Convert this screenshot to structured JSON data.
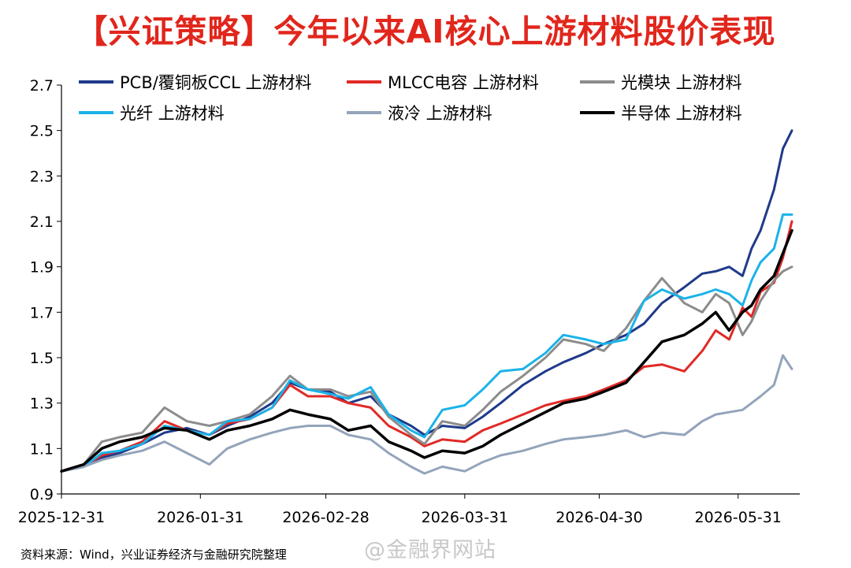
{
  "chart_data": {
    "type": "line",
    "title": "【兴证策略】今年以来AI核心上游材料股价表现",
    "xlabel": "",
    "ylabel": "",
    "x_start": "2025-12-31",
    "x_end": "2026-06-12",
    "x_ticks": [
      "2025-12-31",
      "2026-01-31",
      "2026-02-28",
      "2026-03-31",
      "2026-04-30",
      "2026-05-31"
    ],
    "y_ticks": [
      0.9,
      1.1,
      1.3,
      1.5,
      1.7,
      1.9,
      2.1,
      2.3,
      2.5,
      2.7
    ],
    "ylim": [
      0.9,
      2.7
    ],
    "legend_position": "top",
    "grid": false,
    "series": [
      {
        "name": "PCB/覆铜板CCL 上游材料",
        "color": "#1f3a8a",
        "width": 3,
        "points": [
          [
            "2025-12-31",
            1.0
          ],
          [
            "2026-01-05",
            1.02
          ],
          [
            "2026-01-09",
            1.06
          ],
          [
            "2026-01-13",
            1.08
          ],
          [
            "2026-01-18",
            1.12
          ],
          [
            "2026-01-23",
            1.17
          ],
          [
            "2026-01-28",
            1.19
          ],
          [
            "2026-02-02",
            1.16
          ],
          [
            "2026-02-06",
            1.2
          ],
          [
            "2026-02-11",
            1.24
          ],
          [
            "2026-02-16",
            1.3
          ],
          [
            "2026-02-20",
            1.39
          ],
          [
            "2026-02-24",
            1.36
          ],
          [
            "2026-03-01",
            1.35
          ],
          [
            "2026-03-05",
            1.3
          ],
          [
            "2026-03-10",
            1.33
          ],
          [
            "2026-03-14",
            1.25
          ],
          [
            "2026-03-19",
            1.2
          ],
          [
            "2026-03-22",
            1.16
          ],
          [
            "2026-03-26",
            1.2
          ],
          [
            "2026-03-31",
            1.19
          ],
          [
            "2026-04-04",
            1.24
          ],
          [
            "2026-04-08",
            1.3
          ],
          [
            "2026-04-13",
            1.38
          ],
          [
            "2026-04-18",
            1.44
          ],
          [
            "2026-04-22",
            1.48
          ],
          [
            "2026-04-27",
            1.52
          ],
          [
            "2026-05-01",
            1.56
          ],
          [
            "2026-05-06",
            1.6
          ],
          [
            "2026-05-10",
            1.65
          ],
          [
            "2026-05-14",
            1.74
          ],
          [
            "2026-05-19",
            1.81
          ],
          [
            "2026-05-23",
            1.87
          ],
          [
            "2026-05-26",
            1.88
          ],
          [
            "2026-05-29",
            1.9
          ],
          [
            "2026-06-01",
            1.86
          ],
          [
            "2026-06-03",
            1.98
          ],
          [
            "2026-06-05",
            2.06
          ],
          [
            "2026-06-08",
            2.24
          ],
          [
            "2026-06-10",
            2.42
          ],
          [
            "2026-06-12",
            2.5
          ]
        ]
      },
      {
        "name": "MLCC电容  上游材料",
        "color": "#e02a26",
        "width": 3,
        "points": [
          [
            "2025-12-31",
            1.0
          ],
          [
            "2026-01-05",
            1.02
          ],
          [
            "2026-01-09",
            1.07
          ],
          [
            "2026-01-13",
            1.09
          ],
          [
            "2026-01-18",
            1.13
          ],
          [
            "2026-01-23",
            1.22
          ],
          [
            "2026-01-28",
            1.18
          ],
          [
            "2026-02-02",
            1.16
          ],
          [
            "2026-02-06",
            1.21
          ],
          [
            "2026-02-11",
            1.23
          ],
          [
            "2026-02-16",
            1.28
          ],
          [
            "2026-02-20",
            1.38
          ],
          [
            "2026-02-24",
            1.33
          ],
          [
            "2026-03-01",
            1.33
          ],
          [
            "2026-03-05",
            1.3
          ],
          [
            "2026-03-10",
            1.28
          ],
          [
            "2026-03-14",
            1.2
          ],
          [
            "2026-03-19",
            1.15
          ],
          [
            "2026-03-22",
            1.11
          ],
          [
            "2026-03-26",
            1.14
          ],
          [
            "2026-03-31",
            1.13
          ],
          [
            "2026-04-04",
            1.18
          ],
          [
            "2026-04-08",
            1.21
          ],
          [
            "2026-04-13",
            1.25
          ],
          [
            "2026-04-18",
            1.29
          ],
          [
            "2026-04-22",
            1.31
          ],
          [
            "2026-04-27",
            1.33
          ],
          [
            "2026-05-01",
            1.36
          ],
          [
            "2026-05-06",
            1.4
          ],
          [
            "2026-05-10",
            1.46
          ],
          [
            "2026-05-14",
            1.47
          ],
          [
            "2026-05-19",
            1.44
          ],
          [
            "2026-05-23",
            1.53
          ],
          [
            "2026-05-26",
            1.62
          ],
          [
            "2026-05-29",
            1.58
          ],
          [
            "2026-06-01",
            1.72
          ],
          [
            "2026-06-03",
            1.68
          ],
          [
            "2026-06-05",
            1.79
          ],
          [
            "2026-06-08",
            1.83
          ],
          [
            "2026-06-10",
            1.94
          ],
          [
            "2026-06-12",
            2.1
          ]
        ]
      },
      {
        "name": "光模块 上游材料",
        "color": "#8c8c8c",
        "width": 3,
        "points": [
          [
            "2025-12-31",
            1.0
          ],
          [
            "2026-01-05",
            1.03
          ],
          [
            "2026-01-09",
            1.13
          ],
          [
            "2026-01-13",
            1.15
          ],
          [
            "2026-01-18",
            1.17
          ],
          [
            "2026-01-23",
            1.28
          ],
          [
            "2026-01-28",
            1.22
          ],
          [
            "2026-02-02",
            1.2
          ],
          [
            "2026-02-06",
            1.22
          ],
          [
            "2026-02-11",
            1.25
          ],
          [
            "2026-02-16",
            1.33
          ],
          [
            "2026-02-20",
            1.42
          ],
          [
            "2026-02-24",
            1.36
          ],
          [
            "2026-03-01",
            1.36
          ],
          [
            "2026-03-05",
            1.33
          ],
          [
            "2026-03-10",
            1.35
          ],
          [
            "2026-03-14",
            1.24
          ],
          [
            "2026-03-19",
            1.16
          ],
          [
            "2026-03-22",
            1.12
          ],
          [
            "2026-03-26",
            1.22
          ],
          [
            "2026-03-31",
            1.2
          ],
          [
            "2026-04-04",
            1.27
          ],
          [
            "2026-04-08",
            1.35
          ],
          [
            "2026-04-13",
            1.42
          ],
          [
            "2026-04-18",
            1.5
          ],
          [
            "2026-04-22",
            1.58
          ],
          [
            "2026-04-27",
            1.56
          ],
          [
            "2026-05-01",
            1.53
          ],
          [
            "2026-05-06",
            1.63
          ],
          [
            "2026-05-10",
            1.75
          ],
          [
            "2026-05-14",
            1.85
          ],
          [
            "2026-05-19",
            1.74
          ],
          [
            "2026-05-23",
            1.7
          ],
          [
            "2026-05-26",
            1.78
          ],
          [
            "2026-05-29",
            1.74
          ],
          [
            "2026-06-01",
            1.6
          ],
          [
            "2026-06-03",
            1.66
          ],
          [
            "2026-06-05",
            1.75
          ],
          [
            "2026-06-08",
            1.84
          ],
          [
            "2026-06-10",
            1.88
          ],
          [
            "2026-06-12",
            1.9
          ]
        ]
      },
      {
        "name": "光纤 上游材料",
        "color": "#1ab3e8",
        "width": 3,
        "points": [
          [
            "2025-12-31",
            1.0
          ],
          [
            "2026-01-05",
            1.02
          ],
          [
            "2026-01-09",
            1.08
          ],
          [
            "2026-01-13",
            1.09
          ],
          [
            "2026-01-18",
            1.12
          ],
          [
            "2026-01-23",
            1.2
          ],
          [
            "2026-01-28",
            1.18
          ],
          [
            "2026-02-02",
            1.16
          ],
          [
            "2026-02-06",
            1.22
          ],
          [
            "2026-02-11",
            1.23
          ],
          [
            "2026-02-16",
            1.28
          ],
          [
            "2026-02-20",
            1.4
          ],
          [
            "2026-02-24",
            1.36
          ],
          [
            "2026-03-01",
            1.34
          ],
          [
            "2026-03-05",
            1.32
          ],
          [
            "2026-03-10",
            1.37
          ],
          [
            "2026-03-14",
            1.25
          ],
          [
            "2026-03-19",
            1.18
          ],
          [
            "2026-03-22",
            1.15
          ],
          [
            "2026-03-26",
            1.27
          ],
          [
            "2026-03-31",
            1.29
          ],
          [
            "2026-04-04",
            1.36
          ],
          [
            "2026-04-08",
            1.44
          ],
          [
            "2026-04-13",
            1.45
          ],
          [
            "2026-04-18",
            1.52
          ],
          [
            "2026-04-22",
            1.6
          ],
          [
            "2026-04-27",
            1.58
          ],
          [
            "2026-05-01",
            1.56
          ],
          [
            "2026-05-06",
            1.58
          ],
          [
            "2026-05-10",
            1.75
          ],
          [
            "2026-05-14",
            1.8
          ],
          [
            "2026-05-19",
            1.76
          ],
          [
            "2026-05-23",
            1.78
          ],
          [
            "2026-05-26",
            1.8
          ],
          [
            "2026-05-29",
            1.78
          ],
          [
            "2026-06-01",
            1.73
          ],
          [
            "2026-06-03",
            1.84
          ],
          [
            "2026-06-05",
            1.92
          ],
          [
            "2026-06-08",
            1.98
          ],
          [
            "2026-06-10",
            2.13
          ],
          [
            "2026-06-12",
            2.13
          ]
        ]
      },
      {
        "name": "液冷 上游材料",
        "color": "#93a4bb",
        "width": 3,
        "points": [
          [
            "2025-12-31",
            1.0
          ],
          [
            "2026-01-05",
            1.02
          ],
          [
            "2026-01-09",
            1.05
          ],
          [
            "2026-01-13",
            1.07
          ],
          [
            "2026-01-18",
            1.09
          ],
          [
            "2026-01-23",
            1.13
          ],
          [
            "2026-01-28",
            1.08
          ],
          [
            "2026-02-02",
            1.03
          ],
          [
            "2026-02-06",
            1.1
          ],
          [
            "2026-02-11",
            1.14
          ],
          [
            "2026-02-16",
            1.17
          ],
          [
            "2026-02-20",
            1.19
          ],
          [
            "2026-02-24",
            1.2
          ],
          [
            "2026-03-01",
            1.2
          ],
          [
            "2026-03-05",
            1.16
          ],
          [
            "2026-03-10",
            1.14
          ],
          [
            "2026-03-14",
            1.08
          ],
          [
            "2026-03-19",
            1.02
          ],
          [
            "2026-03-22",
            0.99
          ],
          [
            "2026-03-26",
            1.02
          ],
          [
            "2026-03-31",
            1.0
          ],
          [
            "2026-04-04",
            1.04
          ],
          [
            "2026-04-08",
            1.07
          ],
          [
            "2026-04-13",
            1.09
          ],
          [
            "2026-04-18",
            1.12
          ],
          [
            "2026-04-22",
            1.14
          ],
          [
            "2026-04-27",
            1.15
          ],
          [
            "2026-05-01",
            1.16
          ],
          [
            "2026-05-06",
            1.18
          ],
          [
            "2026-05-10",
            1.15
          ],
          [
            "2026-05-14",
            1.17
          ],
          [
            "2026-05-19",
            1.16
          ],
          [
            "2026-05-23",
            1.22
          ],
          [
            "2026-05-26",
            1.25
          ],
          [
            "2026-05-29",
            1.26
          ],
          [
            "2026-06-01",
            1.27
          ],
          [
            "2026-06-03",
            1.3
          ],
          [
            "2026-06-05",
            1.33
          ],
          [
            "2026-06-08",
            1.38
          ],
          [
            "2026-06-10",
            1.51
          ],
          [
            "2026-06-12",
            1.45
          ]
        ]
      },
      {
        "name": "半导体 上游材料",
        "color": "#000000",
        "width": 3.5,
        "points": [
          [
            "2025-12-31",
            1.0
          ],
          [
            "2026-01-05",
            1.03
          ],
          [
            "2026-01-09",
            1.1
          ],
          [
            "2026-01-13",
            1.13
          ],
          [
            "2026-01-18",
            1.15
          ],
          [
            "2026-01-23",
            1.19
          ],
          [
            "2026-01-28",
            1.18
          ],
          [
            "2026-02-02",
            1.14
          ],
          [
            "2026-02-06",
            1.18
          ],
          [
            "2026-02-11",
            1.2
          ],
          [
            "2026-02-16",
            1.23
          ],
          [
            "2026-02-20",
            1.27
          ],
          [
            "2026-02-24",
            1.25
          ],
          [
            "2026-03-01",
            1.23
          ],
          [
            "2026-03-05",
            1.18
          ],
          [
            "2026-03-10",
            1.2
          ],
          [
            "2026-03-14",
            1.13
          ],
          [
            "2026-03-19",
            1.09
          ],
          [
            "2026-03-22",
            1.06
          ],
          [
            "2026-03-26",
            1.09
          ],
          [
            "2026-03-31",
            1.08
          ],
          [
            "2026-04-04",
            1.11
          ],
          [
            "2026-04-08",
            1.16
          ],
          [
            "2026-04-13",
            1.21
          ],
          [
            "2026-04-18",
            1.26
          ],
          [
            "2026-04-22",
            1.3
          ],
          [
            "2026-04-27",
            1.32
          ],
          [
            "2026-05-01",
            1.35
          ],
          [
            "2026-05-06",
            1.39
          ],
          [
            "2026-05-10",
            1.48
          ],
          [
            "2026-05-14",
            1.57
          ],
          [
            "2026-05-19",
            1.6
          ],
          [
            "2026-05-23",
            1.65
          ],
          [
            "2026-05-26",
            1.7
          ],
          [
            "2026-05-29",
            1.62
          ],
          [
            "2026-06-01",
            1.7
          ],
          [
            "2026-06-03",
            1.73
          ],
          [
            "2026-06-05",
            1.8
          ],
          [
            "2026-06-08",
            1.86
          ],
          [
            "2026-06-10",
            1.96
          ],
          [
            "2026-06-12",
            2.06
          ]
        ]
      }
    ]
  },
  "source": "资料来源：Wind，兴业证券经济与金融研究院整理",
  "watermark": "@金融界网站"
}
